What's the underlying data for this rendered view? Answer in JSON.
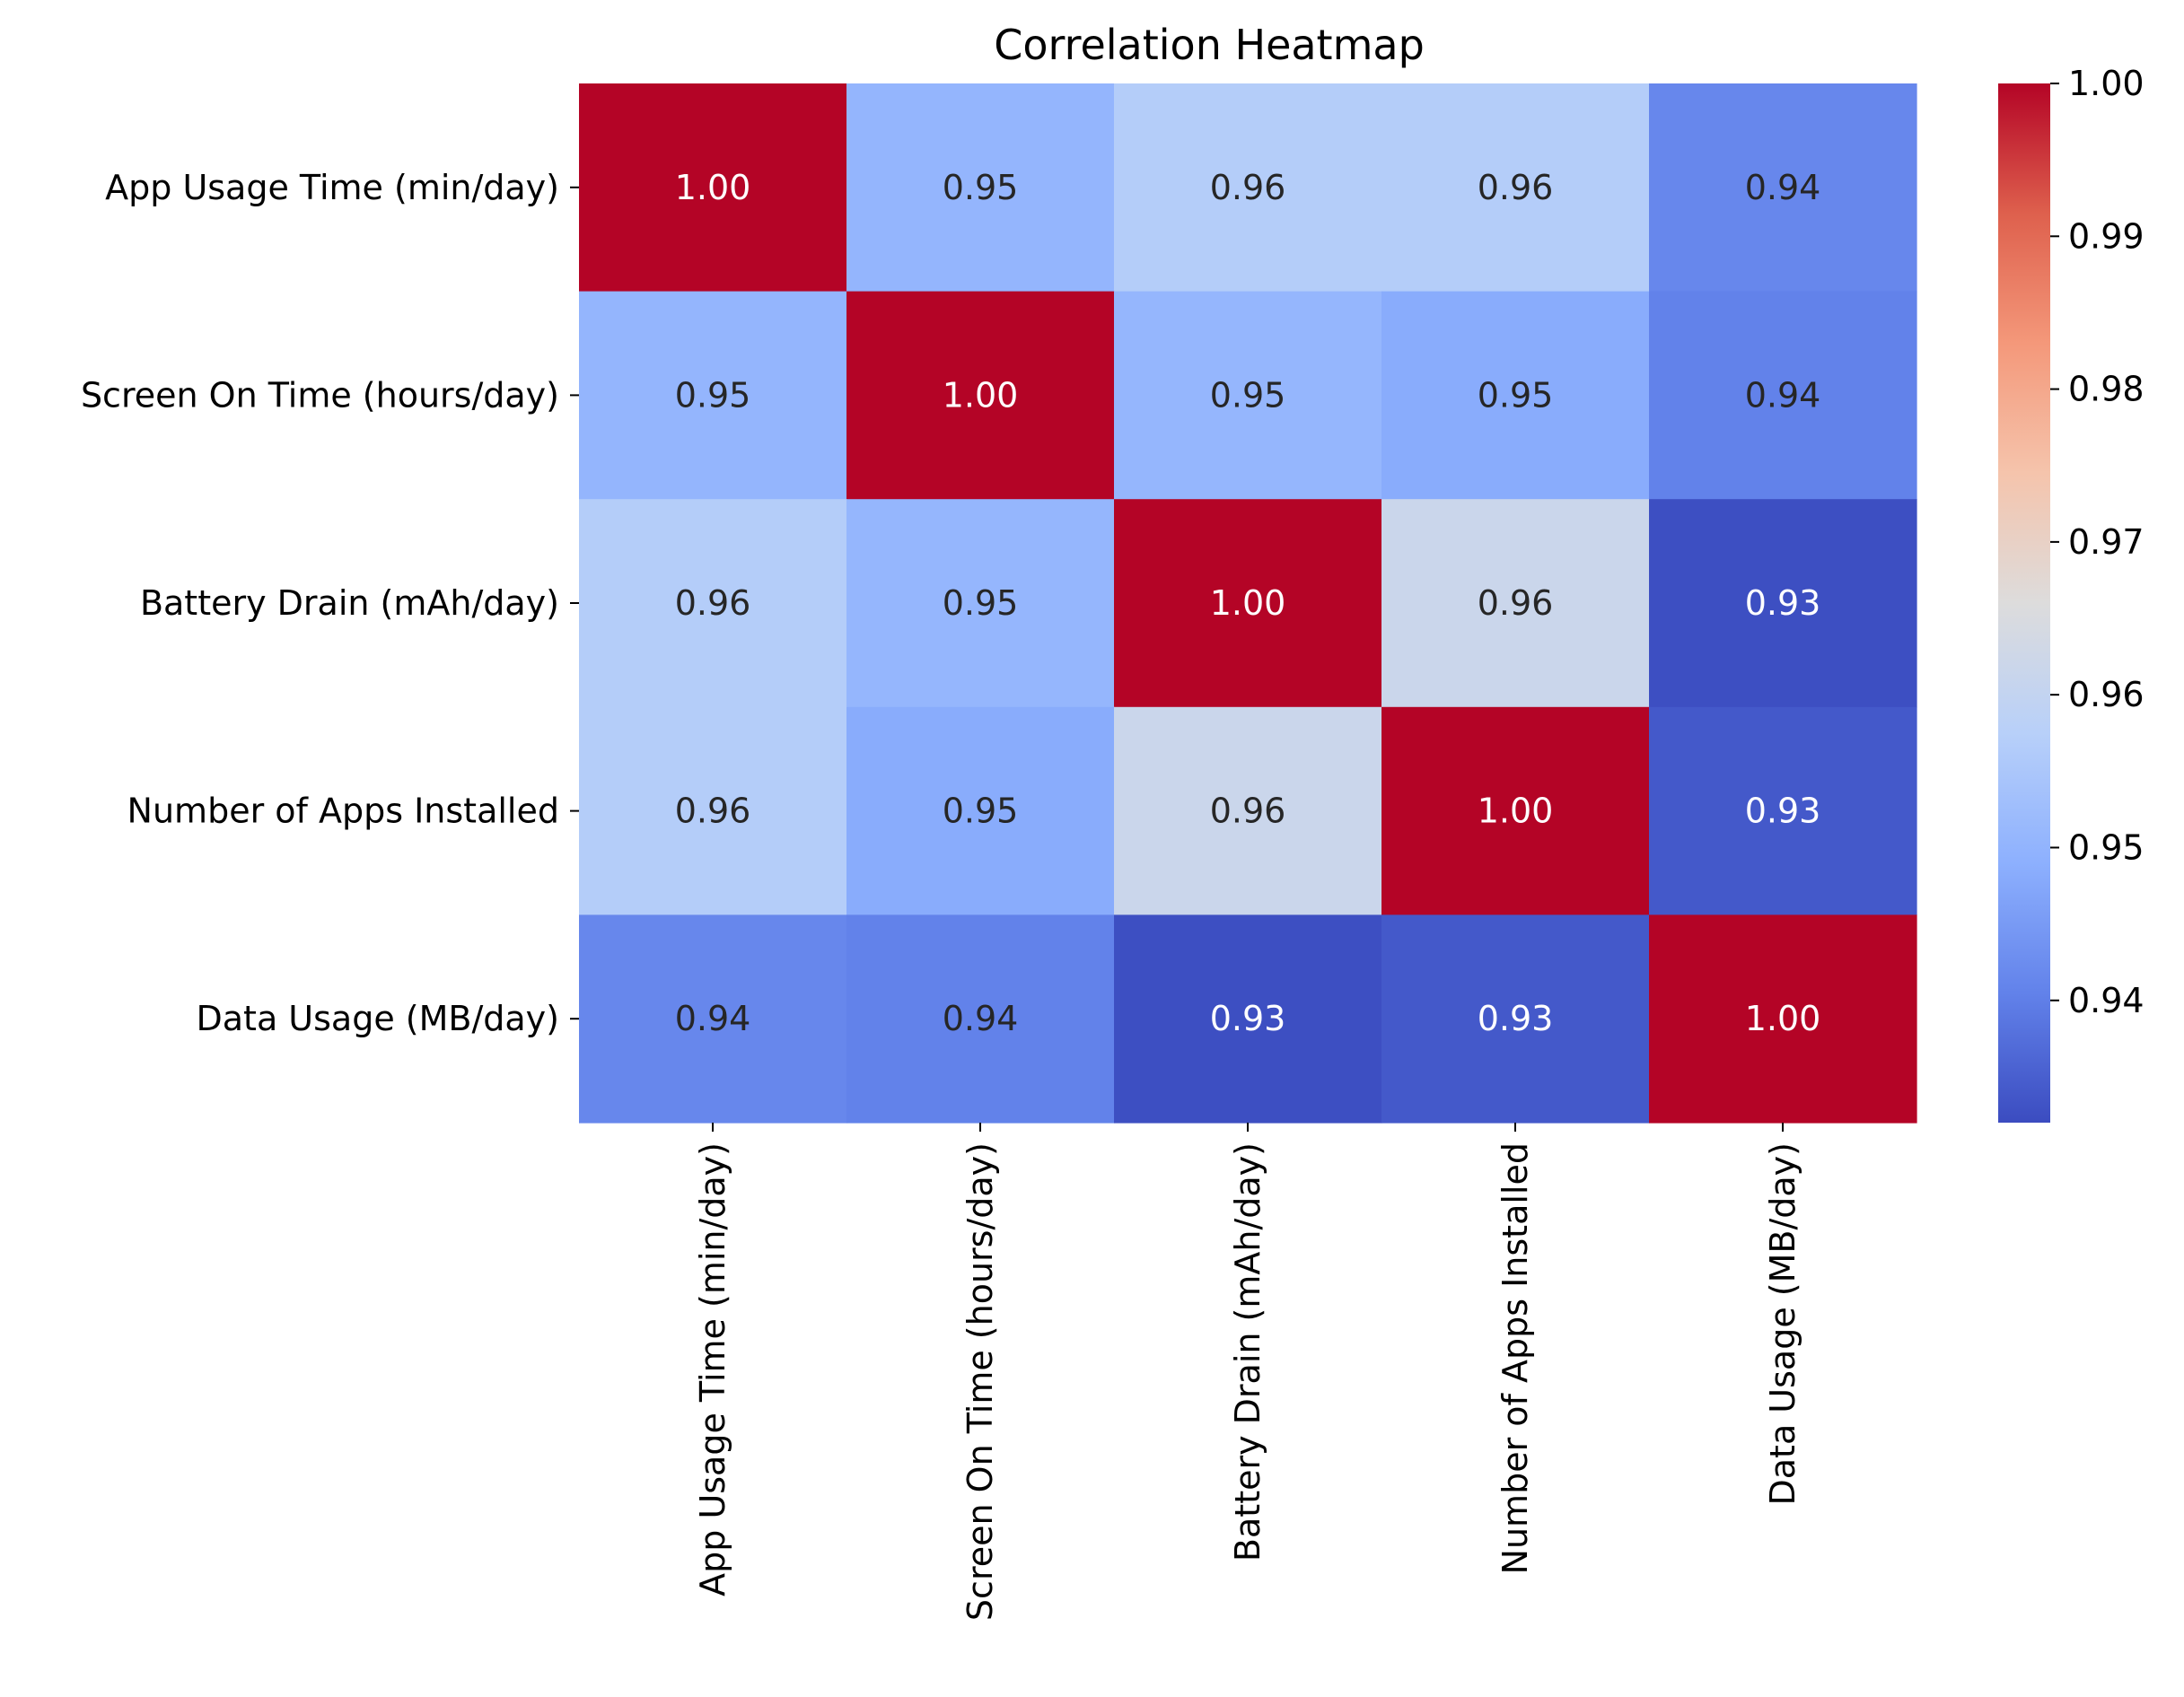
{
  "chart_data": {
    "type": "heatmap",
    "title": "Correlation Heatmap",
    "rows": [
      "App Usage Time (min/day)",
      "Screen On Time (hours/day)",
      "Battery Drain (mAh/day)",
      "Number of Apps Installed",
      "Data Usage (MB/day)"
    ],
    "columns": [
      "App Usage Time (min/day)",
      "Screen On Time (hours/day)",
      "Battery Drain (mAh/day)",
      "Number of Apps Installed",
      "Data Usage (MB/day)"
    ],
    "values": [
      [
        1.0,
        0.9503,
        0.9568,
        0.9567,
        0.9414
      ],
      [
        0.9503,
        1.0,
        0.9505,
        0.9483,
        0.9405
      ],
      [
        0.9568,
        0.9505,
        1.0,
        0.9617,
        0.9325
      ],
      [
        0.9567,
        0.9483,
        0.9617,
        1.0,
        0.934
      ],
      [
        0.9414,
        0.9405,
        0.9325,
        0.934,
        1.0
      ]
    ],
    "annotations": [
      [
        "1.00",
        "0.95",
        "0.96",
        "0.96",
        "0.94"
      ],
      [
        "0.95",
        "1.00",
        "0.95",
        "0.95",
        "0.94"
      ],
      [
        "0.96",
        "0.95",
        "1.00",
        "0.96",
        "0.93"
      ],
      [
        "0.96",
        "0.95",
        "0.96",
        "1.00",
        "0.93"
      ],
      [
        "0.94",
        "0.94",
        "0.93",
        "0.93",
        "1.00"
      ]
    ],
    "colormap": "coolwarm",
    "colormap_stops": [
      "#3b4cc0",
      "#6282ea",
      "#8db0fe",
      "#b8d0f9",
      "#dddcdc",
      "#f5c4ac",
      "#f4987a",
      "#de604d",
      "#b40426"
    ],
    "colorbar": {
      "min": 0.932,
      "max": 1.0,
      "ticks": [
        0.94,
        0.95,
        0.96,
        0.97,
        0.98,
        0.99,
        1.0
      ],
      "tick_labels": [
        "0.94",
        "0.95",
        "0.96",
        "0.97",
        "0.98",
        "0.99",
        "1.00"
      ]
    }
  }
}
